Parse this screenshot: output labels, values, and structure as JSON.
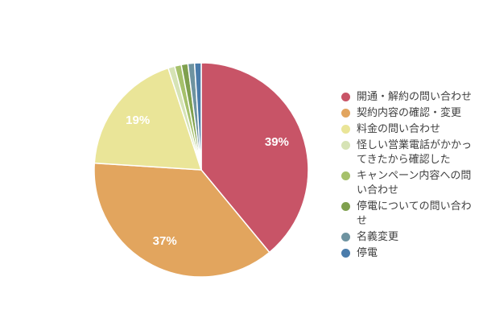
{
  "chart_data": {
    "type": "pie",
    "title": "",
    "legend_position": "right",
    "direction": "clockwise",
    "start_angle_deg": 0,
    "pct_label_color": "#ffffff",
    "slice_border_color": "#ffffff",
    "legend_text_color": "#404040",
    "slices": [
      {
        "label": "開通・解約の問い合わせ",
        "value": 39,
        "pct_label": "39%",
        "color": "#c85467"
      },
      {
        "label": "契約内容の確認・変更",
        "value": 37,
        "pct_label": "37%",
        "color": "#e2a55e"
      },
      {
        "label": "料金の問い合わせ",
        "value": 19,
        "pct_label": "19%",
        "color": "#eae598"
      },
      {
        "label": "怪しい営業電話がかかってきたから確認した",
        "value": 1,
        "pct_label": null,
        "color": "#d6e3b5"
      },
      {
        "label": "キャンペーン内容への問い合わせ",
        "value": 1,
        "pct_label": null,
        "color": "#a6c16b"
      },
      {
        "label": "停電についての問い合わせ",
        "value": 1,
        "pct_label": null,
        "color": "#7fa04e"
      },
      {
        "label": "名義変更",
        "value": 1,
        "pct_label": null,
        "color": "#6e93a0"
      },
      {
        "label": "停電",
        "value": 1,
        "pct_label": null,
        "color": "#4a7cab"
      }
    ]
  }
}
